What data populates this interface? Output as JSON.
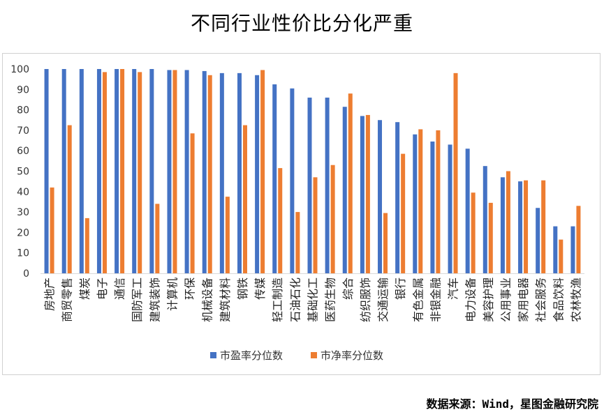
{
  "chart_title": "不同行业性价比分化严重",
  "source_text": "数据来源：Wind，星图金融研究院",
  "chart_data": {
    "type": "bar",
    "title": "不同行业性价比分化严重",
    "ylim": [
      0,
      100
    ],
    "yticks": [
      0,
      10,
      20,
      30,
      40,
      50,
      60,
      70,
      80,
      90,
      100
    ],
    "grid": false,
    "legend_position": "bottom",
    "categories": [
      "房地产",
      "商贸零售",
      "煤炭",
      "电子",
      "通信",
      "国防军工",
      "建筑装饰",
      "计算机",
      "环保",
      "机械设备",
      "建筑材料",
      "钢铁",
      "传媒",
      "轻工制造",
      "石油石化",
      "基础化工",
      "医药生物",
      "综合",
      "纺织服饰",
      "交通运输",
      "银行",
      "有色金属",
      "非银金融",
      "汽车",
      "电力设备",
      "美容护理",
      "公用事业",
      "家用电器",
      "社会服务",
      "食品饮料",
      "农林牧渔"
    ],
    "series": [
      {
        "name": "市盈率分位数",
        "color": "#4472C4",
        "values": [
          100,
          100,
          100,
          100,
          100,
          100,
          100,
          99.5,
          99.5,
          99,
          98,
          98,
          97,
          92.5,
          90.5,
          86,
          86,
          81.5,
          77,
          75,
          74,
          68,
          64.5,
          63,
          61,
          52.5,
          47,
          45,
          32,
          23,
          23
        ]
      },
      {
        "name": "市净率分位数",
        "color": "#ED7D31",
        "values": [
          42,
          72.5,
          27,
          98.5,
          100,
          98.5,
          34,
          99.5,
          68.5,
          97,
          37.5,
          72.5,
          99.5,
          51.5,
          30,
          47,
          53,
          88,
          77.5,
          29.5,
          58.5,
          70.5,
          70,
          98,
          39.5,
          34.5,
          50,
          45.5,
          45.5,
          16.5,
          33
        ]
      }
    ]
  }
}
